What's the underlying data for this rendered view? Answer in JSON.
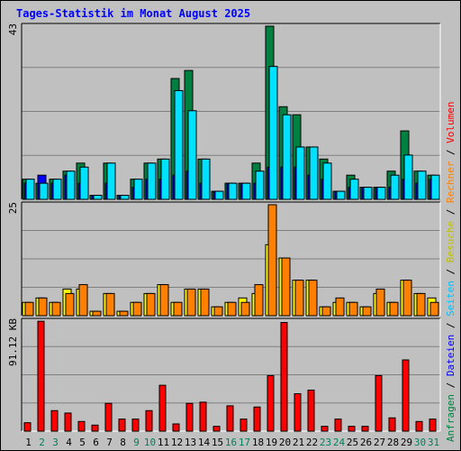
{
  "title": "Tages-Statistik im Monat August 2025",
  "colors": {
    "anfragen": "#008040",
    "dateien": "#0000ff",
    "seiten": "#00e0ff",
    "besuche": "#ffff00",
    "rechner": "#ff8000",
    "kbytes": "#ff0000",
    "day_normal": "#000000",
    "day_weekend": "#00805c",
    "plot_bg": "#c0c0c0",
    "grid": "#808080"
  },
  "chart_data": {
    "type": "bar",
    "days": [
      "1",
      "2",
      "3",
      "4",
      "5",
      "6",
      "7",
      "8",
      "9",
      "10",
      "11",
      "12",
      "13",
      "14",
      "15",
      "16",
      "17",
      "18",
      "19",
      "20",
      "21",
      "22",
      "23",
      "24",
      "25",
      "26",
      "27",
      "28",
      "29",
      "30",
      "31"
    ],
    "weekend_days": [
      "2",
      "3",
      "9",
      "10",
      "16",
      "17",
      "23",
      "24",
      "30",
      "31"
    ],
    "panels": [
      {
        "ymax_label": "43",
        "ymax": 43,
        "legend": [
          "Anfragen",
          "Dateien",
          "Seiten"
        ],
        "series": [
          {
            "name": "Anfragen",
            "values": [
              5,
              4,
              5,
              7,
              9,
              1,
              9,
              1,
              5,
              9,
              10,
              30,
              32,
              10,
              2,
              4,
              4,
              9,
              43,
              23,
              21,
              13,
              10,
              2,
              6,
              3,
              3,
              7,
              17,
              7,
              6
            ]
          },
          {
            "name": "Dateien",
            "values": [
              4,
              6,
              4,
              6,
              4,
              1,
              4,
              1,
              3,
              5,
              5,
              6,
              7,
              4,
              2,
              4,
              4,
              4,
              8,
              8,
              8,
              6,
              5,
              2,
              3,
              3,
              3,
              3,
              5,
              4,
              5
            ]
          },
          {
            "name": "Seiten",
            "values": [
              5,
              4,
              5,
              7,
              8,
              1,
              9,
              1,
              5,
              9,
              10,
              27,
              22,
              10,
              2,
              4,
              4,
              7,
              33,
              21,
              13,
              13,
              9,
              2,
              5,
              3,
              3,
              6,
              11,
              7,
              6
            ]
          }
        ]
      },
      {
        "ymax_label": "25",
        "ymax": 25,
        "legend": [
          "Besuche",
          "Rechner"
        ],
        "series": [
          {
            "name": "Besuche",
            "values": [
              3,
              4,
              3,
              6,
              6,
              1,
              5,
              1,
              3,
              5,
              7,
              3,
              6,
              6,
              2,
              3,
              4,
              5,
              16,
              13,
              8,
              8,
              2,
              3,
              3,
              2,
              5,
              3,
              8,
              5,
              4
            ]
          },
          {
            "name": "Rechner",
            "values": [
              3,
              4,
              3,
              5,
              7,
              1,
              5,
              1,
              3,
              5,
              7,
              3,
              6,
              6,
              2,
              3,
              3,
              7,
              25,
              13,
              8,
              8,
              2,
              4,
              3,
              2,
              6,
              3,
              8,
              5,
              3
            ]
          }
        ]
      },
      {
        "ymax_label": "91.12 KB",
        "ymax": 91.12,
        "legend": [
          "Volumen"
        ],
        "series": [
          {
            "name": "Volumen",
            "values": [
              7,
              91,
              17,
              15,
              8,
              5,
              23,
              10,
              10,
              17,
              38,
              6,
              23,
              24,
              4,
              21,
              10,
              20,
              46,
              90,
              31,
              34,
              4,
              10,
              4,
              4,
              46,
              11,
              59,
              8,
              10
            ]
          }
        ]
      }
    ]
  },
  "vertical_legend": [
    {
      "text": "Anfragen",
      "color": "#008040"
    },
    {
      "text": " / ",
      "color": "#000000"
    },
    {
      "text": "Dateien",
      "color": "#0000ff"
    },
    {
      "text": " / ",
      "color": "#000000"
    },
    {
      "text": "Seiten",
      "color": "#00c0ff"
    },
    {
      "text": " / ",
      "color": "#000000"
    },
    {
      "text": "Besuche",
      "color": "#c0c000"
    },
    {
      "text": " / ",
      "color": "#000000"
    },
    {
      "text": "Rechner",
      "color": "#ff8000"
    },
    {
      "text": " / ",
      "color": "#000000"
    },
    {
      "text": "Volumen",
      "color": "#ff0000"
    }
  ]
}
